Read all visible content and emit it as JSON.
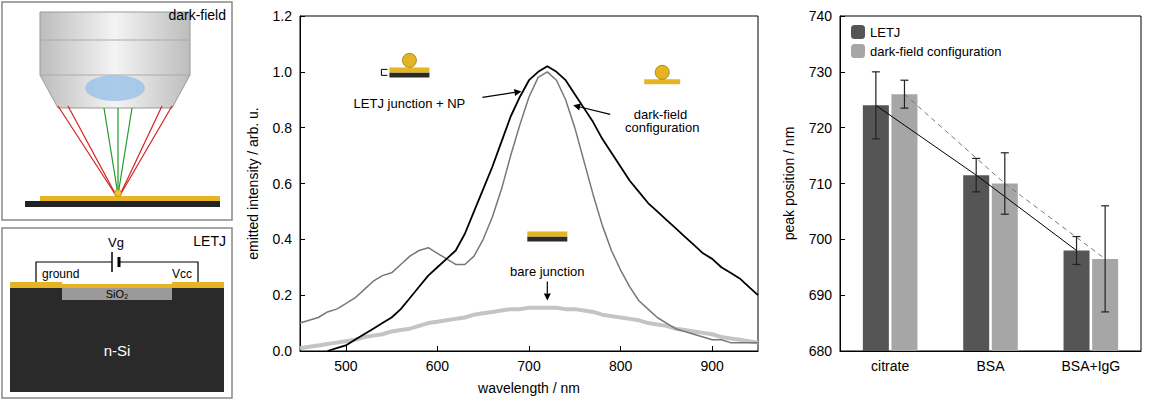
{
  "chart_data": [
    {
      "type": "line",
      "xlabel": "wavelength / nm",
      "ylabel": "emitted intensity / arb. u.",
      "x": [
        450,
        460,
        470,
        480,
        490,
        500,
        510,
        520,
        530,
        540,
        550,
        560,
        570,
        580,
        590,
        600,
        610,
        620,
        630,
        640,
        650,
        660,
        670,
        680,
        690,
        700,
        710,
        720,
        730,
        740,
        750,
        760,
        770,
        780,
        790,
        800,
        810,
        820,
        830,
        840,
        850,
        860,
        870,
        880,
        890,
        900,
        910,
        920,
        930,
        940,
        950
      ],
      "series": [
        {
          "color": "#000000",
          "values": [
            null,
            null,
            null,
            0.0,
            0.01,
            0.02,
            0.04,
            0.06,
            0.08,
            0.1,
            0.12,
            0.15,
            0.19,
            0.23,
            0.27,
            0.3,
            0.33,
            0.36,
            0.42,
            0.5,
            0.58,
            0.66,
            0.75,
            0.84,
            0.91,
            0.97,
            1.0,
            1.02,
            1.0,
            0.97,
            0.92,
            0.87,
            0.82,
            0.76,
            0.71,
            0.66,
            0.61,
            0.57,
            0.53,
            0.5,
            0.47,
            0.44,
            0.41,
            0.38,
            0.35,
            0.33,
            0.3,
            0.28,
            0.26,
            0.23,
            0.2
          ]
        },
        {
          "color": "#777777",
          "values": [
            0.1,
            0.11,
            0.12,
            0.14,
            0.15,
            0.17,
            0.19,
            0.22,
            0.25,
            0.27,
            0.28,
            0.31,
            0.34,
            0.36,
            0.37,
            0.35,
            0.33,
            0.31,
            0.31,
            0.34,
            0.4,
            0.48,
            0.58,
            0.7,
            0.81,
            0.91,
            0.98,
            1.0,
            0.97,
            0.9,
            0.8,
            0.68,
            0.56,
            0.45,
            0.36,
            0.29,
            0.23,
            0.18,
            0.15,
            0.12,
            0.1,
            0.08,
            0.07,
            0.06,
            0.05,
            0.04,
            0.04,
            0.03,
            0.03,
            0.03,
            0.03
          ]
        },
        {
          "color": "#c4c4c4",
          "values": [
            0.01,
            0.015,
            0.02,
            0.025,
            0.03,
            0.035,
            0.04,
            0.05,
            0.055,
            0.06,
            0.07,
            0.075,
            0.08,
            0.09,
            0.1,
            0.105,
            0.11,
            0.115,
            0.12,
            0.13,
            0.135,
            0.14,
            0.145,
            0.15,
            0.15,
            0.155,
            0.155,
            0.155,
            0.155,
            0.15,
            0.15,
            0.145,
            0.14,
            0.13,
            0.125,
            0.12,
            0.115,
            0.11,
            0.1,
            0.095,
            0.09,
            0.08,
            0.075,
            0.07,
            0.065,
            0.06,
            0.05,
            0.045,
            0.04,
            0.035,
            0.03
          ]
        }
      ],
      "annotations": [
        {
          "text": "LETJ junction + NP",
          "x": 695,
          "y": 0.93
        },
        {
          "text": "dark-field configuration",
          "x": 745,
          "y": 0.88
        },
        {
          "text": "bare junction",
          "x": 720,
          "y": 0.17
        }
      ],
      "xlim": [
        450,
        950
      ],
      "xticks": [
        500,
        600,
        700,
        800,
        900
      ],
      "ylim": [
        0,
        1.2
      ],
      "yticks": [
        {
          "value": 0,
          "label": "0.0"
        },
        0.2,
        0.4,
        0.6,
        0.8,
        {
          "value": 1,
          "label": "1.0"
        },
        1.2
      ],
      "grid": false
    },
    {
      "type": "bar",
      "ylabel": "peak position / nm",
      "categories": [
        "citrate",
        "BSA",
        "BSA+IgG"
      ],
      "series": [
        {
          "name": "LETJ",
          "color": "#555555",
          "values": [
            724,
            711.5,
            698
          ],
          "errors": [
            6,
            3,
            2.5
          ],
          "line_style": "solid"
        },
        {
          "name": "dark-field configuration",
          "color": "#a6a6a6",
          "values": [
            726,
            710,
            696.5
          ],
          "errors": [
            2.5,
            5.5,
            9.5
          ],
          "line_style": "dashed"
        }
      ],
      "ylim": [
        680,
        740
      ],
      "yticks": [
        680,
        690,
        700,
        710,
        720,
        730,
        740
      ],
      "grid": false,
      "legend": "upper left"
    }
  ],
  "diagrams": {
    "dark_field": {
      "title": "dark-field"
    },
    "letj": {
      "title": "LETJ",
      "ground": "ground",
      "gate": "Vg",
      "supply": "Vcc",
      "oxide": "SiO₂",
      "substrate": "n-Si"
    }
  }
}
